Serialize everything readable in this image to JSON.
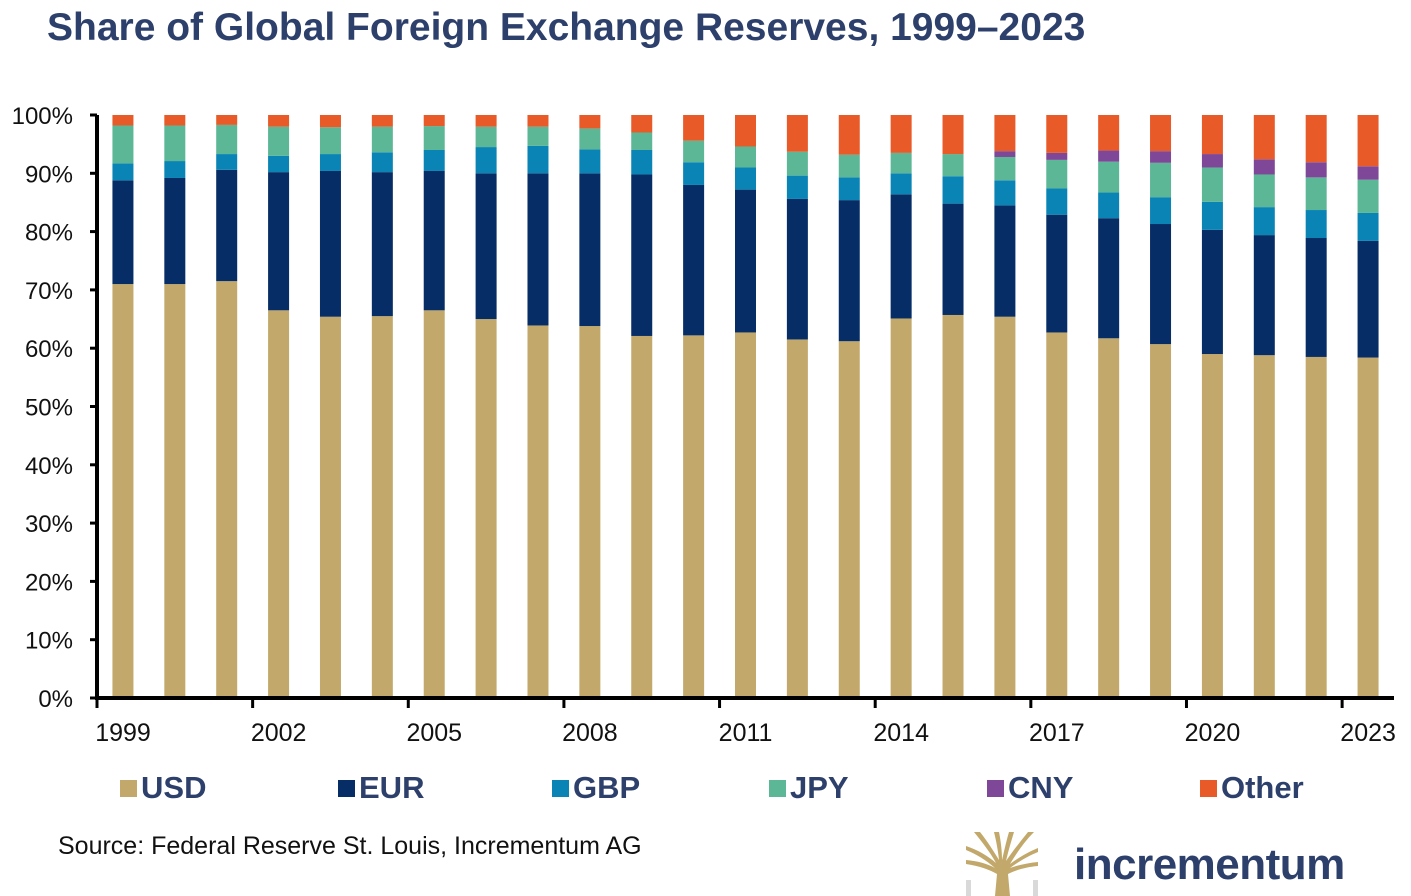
{
  "title": "Share of Global Foreign Exchange Reserves, 1999–2023",
  "source": "Source: Federal Reserve St. Louis, Incrementum AG",
  "logo": {
    "text": "incrementum",
    "brand_gold": "#c2a96b",
    "brand_navy": "#2d3f6b"
  },
  "chart_data": {
    "type": "bar",
    "stacked": true,
    "title": "Share of Global Foreign Exchange Reserves, 1999–2023",
    "xlabel": "",
    "ylabel": "",
    "ylim": [
      0,
      100
    ],
    "y_ticks": [
      "0%",
      "10%",
      "20%",
      "30%",
      "40%",
      "50%",
      "60%",
      "70%",
      "80%",
      "90%",
      "100%"
    ],
    "x_tick_labels": [
      "1999",
      "2002",
      "2005",
      "2008",
      "2011",
      "2014",
      "2017",
      "2020",
      "2023"
    ],
    "grid": false,
    "legend_position": "bottom",
    "categories": [
      "1999",
      "2000",
      "2001",
      "2002",
      "2003",
      "2004",
      "2005",
      "2006",
      "2007",
      "2008",
      "2009",
      "2010",
      "2011",
      "2012",
      "2013",
      "2014",
      "2015",
      "2016",
      "2017",
      "2018",
      "2019",
      "2020",
      "2021",
      "2022",
      "2023"
    ],
    "series": [
      {
        "name": "USD",
        "color": "#c2a96b",
        "values": [
          71.0,
          71.0,
          71.5,
          66.5,
          65.4,
          65.5,
          66.5,
          65.0,
          63.9,
          63.8,
          62.1,
          62.2,
          62.7,
          61.5,
          61.2,
          65.1,
          65.7,
          65.4,
          62.7,
          61.7,
          60.7,
          59.0,
          58.8,
          58.5,
          58.4
        ]
      },
      {
        "name": "EUR",
        "color": "#062d66",
        "values": [
          17.8,
          18.2,
          19.1,
          23.7,
          25.0,
          24.7,
          23.9,
          25.0,
          26.1,
          26.2,
          27.7,
          25.8,
          24.5,
          24.1,
          24.2,
          21.3,
          19.1,
          19.1,
          20.2,
          20.6,
          20.6,
          21.3,
          20.6,
          20.4,
          20.0
        ]
      },
      {
        "name": "GBP",
        "color": "#0a84b5",
        "values": [
          2.9,
          2.9,
          2.7,
          2.8,
          2.9,
          3.4,
          3.6,
          4.5,
          4.7,
          4.1,
          4.2,
          3.9,
          3.8,
          4.0,
          3.9,
          3.6,
          4.7,
          4.3,
          4.5,
          4.4,
          4.6,
          4.8,
          4.8,
          4.8,
          4.8
        ]
      },
      {
        "name": "JPY",
        "color": "#5bb796",
        "values": [
          6.5,
          6.1,
          5.0,
          5.0,
          4.6,
          4.4,
          4.1,
          3.5,
          3.3,
          3.6,
          3.0,
          3.7,
          3.6,
          4.1,
          3.9,
          3.5,
          3.8,
          4.0,
          4.9,
          5.3,
          5.9,
          5.9,
          5.6,
          5.6,
          5.7
        ]
      },
      {
        "name": "CNY",
        "color": "#7e4797",
        "values": [
          0,
          0,
          0,
          0,
          0,
          0,
          0,
          0,
          0,
          0,
          0,
          0,
          0,
          0,
          0,
          0,
          0,
          1.0,
          1.2,
          1.9,
          2.0,
          2.3,
          2.6,
          2.6,
          2.3
        ]
      },
      {
        "name": "Other",
        "color": "#e85a28",
        "values": [
          1.8,
          1.8,
          1.7,
          2.0,
          2.1,
          2.0,
          1.9,
          2.0,
          2.0,
          2.3,
          3.0,
          4.4,
          5.4,
          6.3,
          6.8,
          6.5,
          6.7,
          6.2,
          6.5,
          6.1,
          6.2,
          6.7,
          7.6,
          8.1,
          8.8
        ]
      }
    ]
  }
}
